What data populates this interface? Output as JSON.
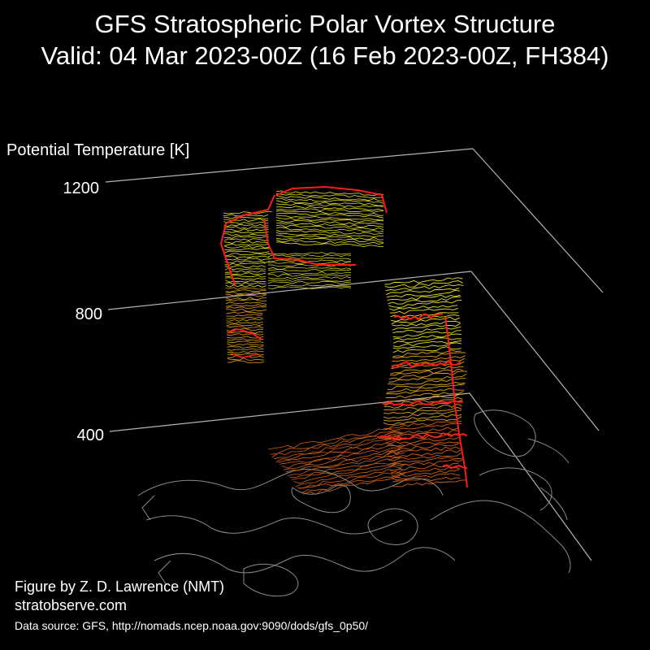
{
  "header": {
    "title_line1": "GFS Stratospheric Polar Vortex Structure",
    "title_line2": "Valid: 04 Mar 2023-00Z  (16 Feb 2023-00Z, FH384)"
  },
  "credits": {
    "author": "Figure by Z. D. Lawrence (NMT)",
    "website": "stratobserve.com",
    "source": "Data source: GFS, http://nomads.ncep.noaa.gov:9090/dods/gfs_0p50/"
  },
  "chart_data": {
    "type": "3d-isosurface",
    "zlabel": "Potential Temperature [K]",
    "z_ticks": [
      400,
      800,
      1200
    ],
    "zlim": [
      300,
      1300
    ],
    "colors": {
      "background": "#000000",
      "axes": "#b4b4b4",
      "coastline": "#8a8a8a",
      "vortex_edge": "#ff1a1a",
      "contour_high": "#e8e020",
      "contour_mid": "#e0a010",
      "contour_low": "#d06010"
    },
    "structures": [
      {
        "name": "upper",
        "theta_range": [
          700,
          1200
        ]
      },
      {
        "name": "lower",
        "theta_range": [
          350,
          850
        ]
      }
    ]
  }
}
